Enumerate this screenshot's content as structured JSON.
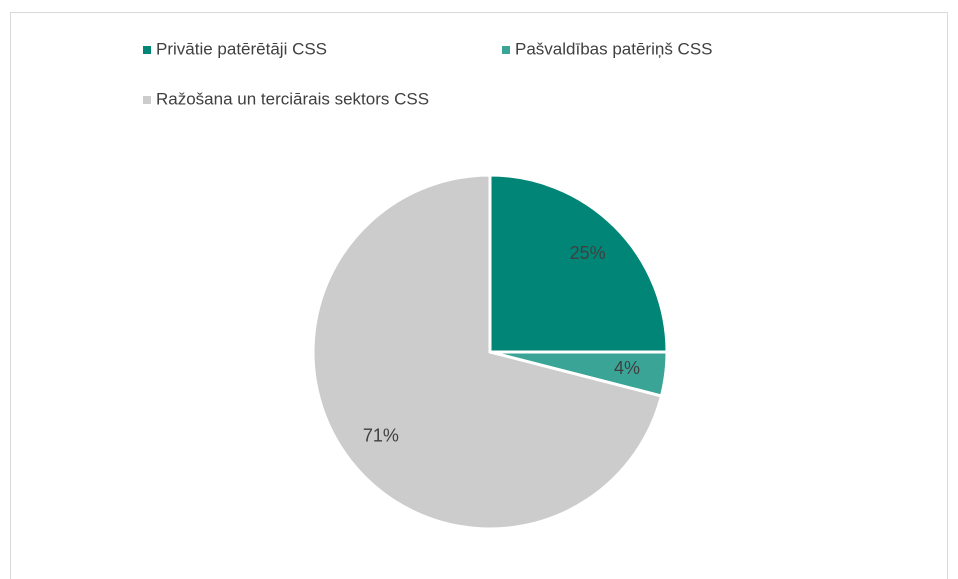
{
  "chart_data": {
    "type": "pie",
    "categories": [
      "Privātie patērētāji CSS",
      "Pašvaldības patēriņš CSS",
      "Ražošana un terciārais sektors CSS"
    ],
    "values": [
      25,
      4,
      71
    ],
    "value_labels": [
      "25%",
      "4%",
      "71%"
    ],
    "colors": [
      "#008577",
      "#3aa597",
      "#cccccc"
    ],
    "legend": "top"
  }
}
